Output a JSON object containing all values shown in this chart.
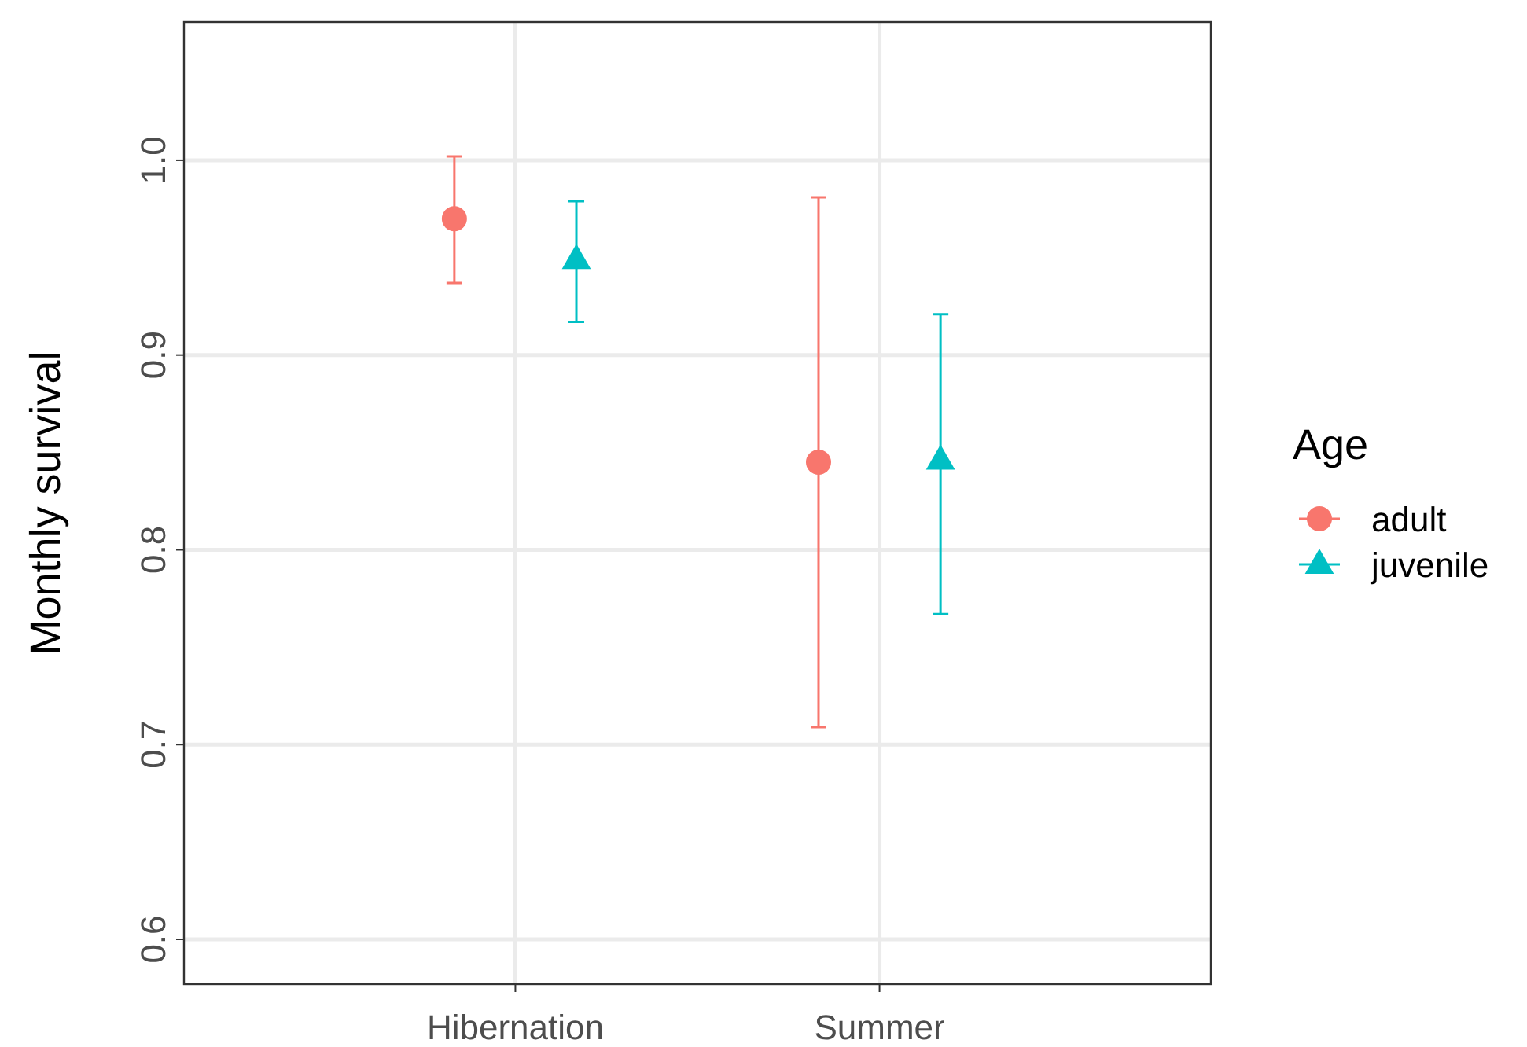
{
  "chart_data": {
    "type": "scatter",
    "ylabel": "Monthly survival",
    "legend_title": "Age",
    "categories": [
      "Hibernation",
      "Summer"
    ],
    "series": [
      {
        "name": "adult",
        "color": "#f8766d",
        "marker": "circle",
        "values": [
          0.97,
          0.845
        ],
        "errors": [
          [
            0.937,
            1.002
          ],
          [
            0.709,
            0.981
          ]
        ]
      },
      {
        "name": "juvenile",
        "color": "#00bfc4",
        "marker": "triangle",
        "values": [
          0.949,
          0.846
        ],
        "errors": [
          [
            0.917,
            0.979
          ],
          [
            0.767,
            0.921
          ]
        ]
      }
    ],
    "ylim": [
      0.577,
      1.071
    ],
    "yticks": [
      {
        "value": 0.6,
        "label": "0.6"
      },
      {
        "value": 0.7,
        "label": "0.7"
      },
      {
        "value": 0.8,
        "label": "0.8"
      },
      {
        "value": 0.9,
        "label": "0.9"
      },
      {
        "value": 1.0,
        "label": "1.0"
      }
    ],
    "grid": true,
    "legend": "right"
  }
}
